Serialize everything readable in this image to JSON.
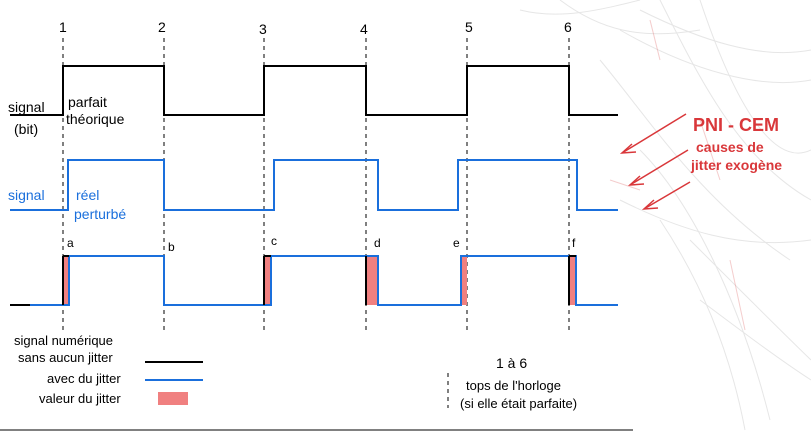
{
  "clock_ticks": [
    "1",
    "2",
    "3",
    "4",
    "5",
    "6"
  ],
  "edge_letters": [
    "a",
    "b",
    "c",
    "d",
    "e",
    "f"
  ],
  "labels": {
    "signal_bit_1": "signal",
    "signal_bit_2": "(bit)",
    "perfect_1": "parfait",
    "perfect_2": "théorique",
    "real_signal": "signal",
    "real_1": "réel",
    "real_2": "perturbé"
  },
  "annotation": {
    "title": "PNI - CEM",
    "line1": "causes de",
    "line2": "jitter exogène"
  },
  "legend": {
    "heading": "signal numérique",
    "no_jitter": "sans aucun jitter",
    "with_jitter": "avec du jitter",
    "jitter_value": "valeur du jitter"
  },
  "clock_legend": {
    "range": "1 à 6",
    "line1": "tops de l'horloge",
    "line2": "(si elle était parfaite)"
  },
  "colors": {
    "ideal": "#000000",
    "jittered": "#1a6fdc",
    "jitter_fill": "#f08080",
    "annotation": "#d9373a"
  }
}
